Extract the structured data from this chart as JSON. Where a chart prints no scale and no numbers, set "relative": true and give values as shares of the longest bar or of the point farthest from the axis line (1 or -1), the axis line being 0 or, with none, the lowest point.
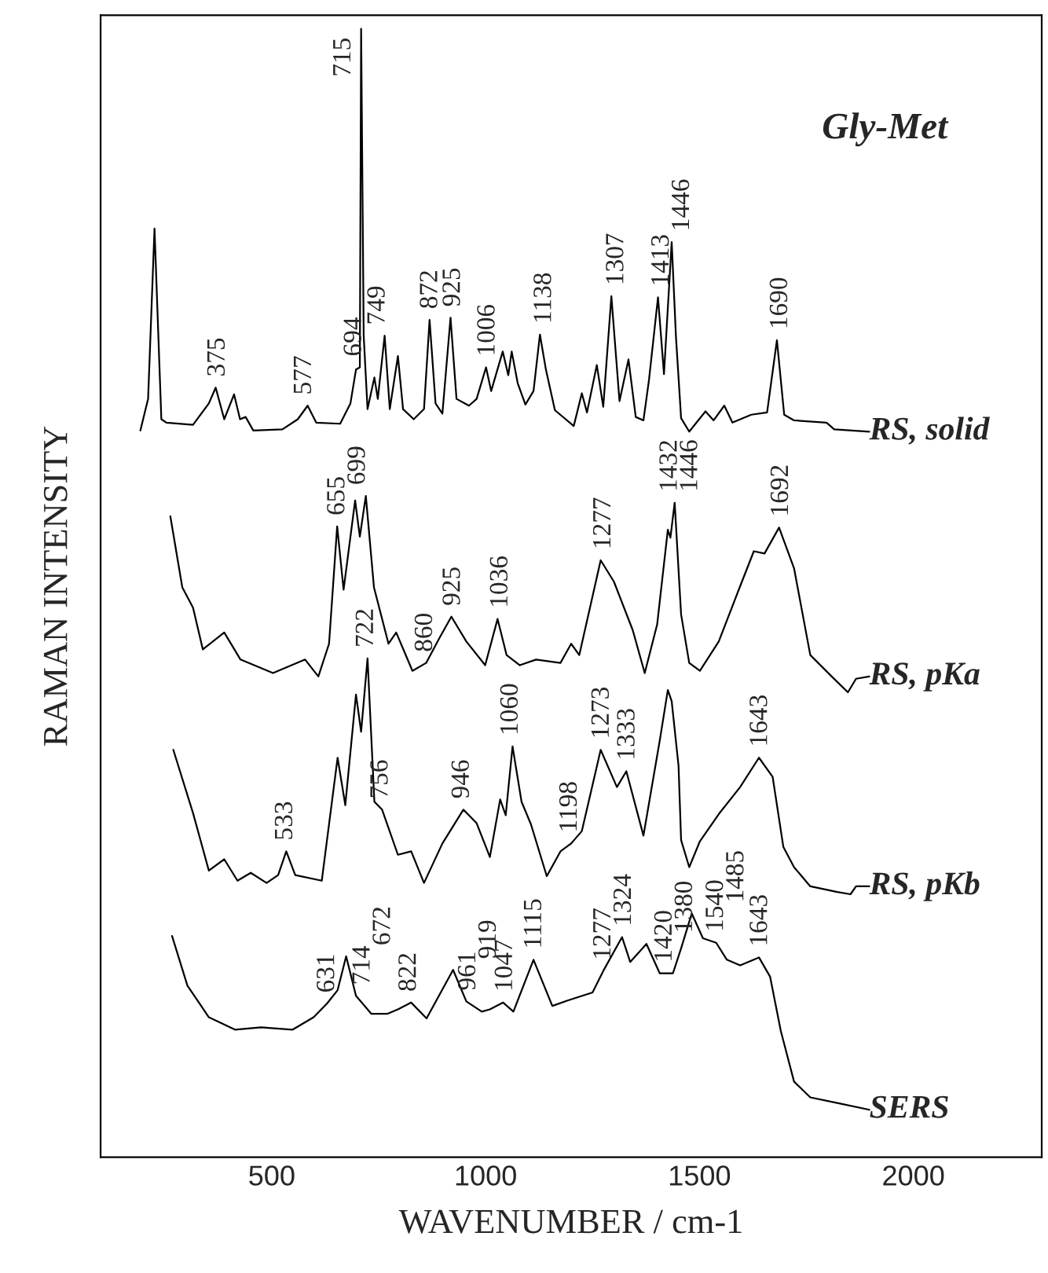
{
  "chart_data": {
    "type": "line",
    "relative": true,
    "xlabel": "WAVENUMBER / cm-1",
    "ylabel": "RAMAN INTENSITY",
    "xlim": [
      100,
      2300
    ],
    "xticks": [
      500,
      1000,
      1500,
      2000
    ],
    "grid": false,
    "marker": "none",
    "line_style": "solid",
    "tick_labels": "x",
    "series": [
      {
        "name": "RS, solid",
        "color": "#000000",
        "x": [
          193,
          211,
          226,
          242,
          254,
          316,
          353,
          369,
          389,
          412,
          426,
          439,
          457,
          525,
          561,
          584,
          604,
          660,
          684,
          697,
          706,
          709,
          715,
          724,
          740,
          748,
          764,
          776,
          795,
          807,
          832,
          856,
          869,
          883,
          899,
          918,
          932,
          961,
          979,
          1001,
          1013,
          1040,
          1053,
          1061,
          1075,
          1093,
          1112,
          1127,
          1141,
          1162,
          1206,
          1225,
          1237,
          1260,
          1275,
          1294,
          1313,
          1334,
          1351,
          1369,
          1382,
          1403,
          1417,
          1435,
          1445,
          1457,
          1476,
          1514,
          1533,
          1558,
          1577,
          1621,
          1658,
          1681,
          1698,
          1721,
          1797,
          1815,
          1897
        ],
        "values": [
          0.644,
          0.672,
          0.823,
          0.654,
          0.651,
          0.649,
          0.668,
          0.682,
          0.654,
          0.676,
          0.654,
          0.656,
          0.644,
          0.645,
          0.654,
          0.666,
          0.651,
          0.65,
          0.668,
          0.698,
          0.7,
          1.0,
          0.728,
          0.663,
          0.691,
          0.672,
          0.728,
          0.663,
          0.71,
          0.663,
          0.654,
          0.663,
          0.742,
          0.668,
          0.659,
          0.744,
          0.672,
          0.666,
          0.672,
          0.7,
          0.679,
          0.714,
          0.693,
          0.714,
          0.686,
          0.667,
          0.679,
          0.729,
          0.698,
          0.662,
          0.648,
          0.677,
          0.66,
          0.702,
          0.665,
          0.763,
          0.67,
          0.707,
          0.656,
          0.653,
          0.689,
          0.762,
          0.694,
          0.811,
          0.727,
          0.655,
          0.643,
          0.661,
          0.653,
          0.666,
          0.651,
          0.658,
          0.66,
          0.724,
          0.658,
          0.653,
          0.651,
          0.645,
          0.643
        ]
      },
      {
        "name": "RS, pKa",
        "color": "#000000",
        "x": [
          263,
          291,
          316,
          339,
          389,
          427,
          503,
          578,
          609,
          634,
          653,
          668,
          695,
          706,
          720,
          739,
          773,
          791,
          829,
          861,
          892,
          920,
          955,
          999,
          1028,
          1049,
          1080,
          1118,
          1175,
          1200,
          1219,
          1269,
          1300,
          1344,
          1372,
          1401,
          1426,
          1432,
          1442,
          1457,
          1476,
          1501,
          1545,
          1595,
          1627,
          1652,
          1686,
          1721,
          1759,
          1809,
          1847,
          1866,
          1897
        ],
        "values": [
          0.568,
          0.505,
          0.487,
          0.45,
          0.465,
          0.441,
          0.429,
          0.441,
          0.426,
          0.455,
          0.559,
          0.503,
          0.582,
          0.55,
          0.586,
          0.505,
          0.455,
          0.465,
          0.431,
          0.438,
          0.46,
          0.479,
          0.457,
          0.436,
          0.477,
          0.445,
          0.436,
          0.441,
          0.438,
          0.455,
          0.445,
          0.529,
          0.51,
          0.467,
          0.429,
          0.472,
          0.556,
          0.549,
          0.58,
          0.481,
          0.438,
          0.431,
          0.457,
          0.506,
          0.537,
          0.535,
          0.558,
          0.522,
          0.445,
          0.426,
          0.412,
          0.424,
          0.426
        ]
      },
      {
        "name": "RS, pKb",
        "color": "#000000",
        "x": [
          270,
          316,
          353,
          389,
          420,
          451,
          488,
          515,
          534,
          555,
          617,
          654,
          672,
          697,
          709,
          724,
          740,
          758,
          795,
          826,
          856,
          899,
          948,
          979,
          1010,
          1034,
          1047,
          1063,
          1084,
          1106,
          1143,
          1175,
          1200,
          1225,
          1269,
          1307,
          1329,
          1369,
          1407,
          1426,
          1435,
          1451,
          1457,
          1476,
          1501,
          1545,
          1595,
          1639,
          1671,
          1696,
          1721,
          1759,
          1822,
          1853,
          1866,
          1897
        ],
        "values": [
          0.361,
          0.305,
          0.254,
          0.264,
          0.245,
          0.252,
          0.243,
          0.25,
          0.271,
          0.25,
          0.245,
          0.354,
          0.312,
          0.41,
          0.377,
          0.442,
          0.315,
          0.308,
          0.268,
          0.271,
          0.243,
          0.278,
          0.308,
          0.296,
          0.266,
          0.317,
          0.303,
          0.364,
          0.315,
          0.295,
          0.249,
          0.271,
          0.278,
          0.289,
          0.361,
          0.328,
          0.342,
          0.285,
          0.369,
          0.414,
          0.404,
          0.347,
          0.281,
          0.257,
          0.28,
          0.304,
          0.328,
          0.354,
          0.337,
          0.275,
          0.257,
          0.24,
          0.235,
          0.233,
          0.24,
          0.24
        ]
      },
      {
        "name": "SERS",
        "color": "#000000",
        "x": [
          267,
          303,
          353,
          414,
          475,
          549,
          598,
          629,
          654,
          674,
          697,
          733,
          770,
          795,
          826,
          862,
          924,
          955,
          991,
          1010,
          1041,
          1065,
          1112,
          1156,
          1193,
          1250,
          1275,
          1319,
          1338,
          1376,
          1407,
          1438,
          1457,
          1482,
          1508,
          1539,
          1564,
          1595,
          1639,
          1665,
          1690,
          1721,
          1759,
          1822,
          1897
        ],
        "values": [
          0.196,
          0.152,
          0.124,
          0.113,
          0.115,
          0.113,
          0.124,
          0.136,
          0.148,
          0.178,
          0.143,
          0.127,
          0.127,
          0.131,
          0.137,
          0.123,
          0.166,
          0.138,
          0.129,
          0.131,
          0.137,
          0.129,
          0.175,
          0.134,
          0.139,
          0.146,
          0.165,
          0.195,
          0.173,
          0.189,
          0.163,
          0.163,
          0.185,
          0.216,
          0.194,
          0.19,
          0.175,
          0.17,
          0.177,
          0.16,
          0.112,
          0.067,
          0.053,
          0.048,
          0.042
        ]
      }
    ],
    "annotations": [
      "Gly-Met",
      {
        "text": "375",
        "x": 375,
        "y": 0.682
      },
      {
        "text": "577",
        "x": 577,
        "y": 0.666
      },
      {
        "text": "694",
        "x": 694,
        "y": 0.7
      },
      {
        "text": "715",
        "x": 715,
        "y": 1.0
      },
      {
        "text": "749",
        "x": 749,
        "y": 0.728
      },
      {
        "text": "872",
        "x": 872,
        "y": 0.742
      },
      {
        "text": "925",
        "x": 925,
        "y": 0.744
      },
      {
        "text": "1006",
        "x": 1006,
        "y": 0.7
      },
      {
        "text": "1138",
        "x": 1138,
        "y": 0.729
      },
      {
        "text": "1307",
        "x": 1307,
        "y": 0.763
      },
      {
        "text": "1413",
        "x": 1413,
        "y": 0.762
      },
      {
        "text": "1446",
        "x": 1446,
        "y": 0.811
      },
      {
        "text": "1690",
        "x": 1690,
        "y": 0.724
      },
      {
        "text": "655",
        "x": 655,
        "y": 0.559
      },
      {
        "text": "699",
        "x": 699,
        "y": 0.586
      },
      {
        "text": "860",
        "x": 860,
        "y": 0.438
      },
      {
        "text": "925",
        "x": 925,
        "y": 0.479
      },
      {
        "text": "1036",
        "x": 1036,
        "y": 0.477
      },
      {
        "text": "1277",
        "x": 1277,
        "y": 0.529
      },
      {
        "text": "1432",
        "x": 1432,
        "y": 0.556
      },
      {
        "text": "1446",
        "x": 1446,
        "y": 0.58
      },
      {
        "text": "1692",
        "x": 1692,
        "y": 0.558
      },
      {
        "text": "533",
        "x": 533,
        "y": 0.271
      },
      {
        "text": "722",
        "x": 722,
        "y": 0.442
      },
      {
        "text": "756",
        "x": 756,
        "y": 0.308
      },
      {
        "text": "946",
        "x": 946,
        "y": 0.308
      },
      {
        "text": "1060",
        "x": 1060,
        "y": 0.364
      },
      {
        "text": "1198",
        "x": 1198,
        "y": 0.278
      },
      {
        "text": "1273",
        "x": 1273,
        "y": 0.361
      },
      {
        "text": "1333",
        "x": 1333,
        "y": 0.342
      },
      {
        "text": "1643",
        "x": 1643,
        "y": 0.354
      },
      {
        "text": "631",
        "x": 631,
        "y": 0.136
      },
      {
        "text": "672",
        "x": 672,
        "y": 0.178
      },
      {
        "text": "714",
        "x": 714,
        "y": 0.143
      },
      {
        "text": "822",
        "x": 822,
        "y": 0.137
      },
      {
        "text": "919",
        "x": 919,
        "y": 0.166
      },
      {
        "text": "961",
        "x": 961,
        "y": 0.138
      },
      {
        "text": "1047",
        "x": 1047,
        "y": 0.137
      },
      {
        "text": "1115",
        "x": 1115,
        "y": 0.175
      },
      {
        "text": "1277",
        "x": 1277,
        "y": 0.165
      },
      {
        "text": "1324",
        "x": 1324,
        "y": 0.195
      },
      {
        "text": "1380",
        "x": 1380,
        "y": 0.189
      },
      {
        "text": "1420",
        "x": 1420,
        "y": 0.163
      },
      {
        "text": "1485",
        "x": 1485,
        "y": 0.216
      },
      {
        "text": "1540",
        "x": 1540,
        "y": 0.19
      },
      {
        "text": "1643",
        "x": 1643,
        "y": 0.177
      }
    ]
  }
}
